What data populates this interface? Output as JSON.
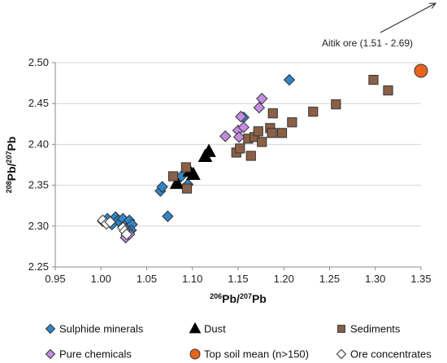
{
  "chart_data": {
    "type": "scatter",
    "xlabel": "206Pb/207Pb",
    "ylabel": "208Pb/207Pb",
    "xlim": [
      0.95,
      1.35
    ],
    "ylim": [
      2.25,
      2.5
    ],
    "xticks": [
      "0.95",
      "1.00",
      "1.05",
      "1.10",
      "1.15",
      "1.20",
      "1.25",
      "1.30",
      "1.35"
    ],
    "yticks": [
      "2.25",
      "2.30",
      "2.35",
      "2.40",
      "2.45",
      "2.50"
    ],
    "grid": "horizontal",
    "legend_position": "bottom",
    "annotation": "Aitik ore (1.51 - 2.69)",
    "series": [
      {
        "name": "Sulphide minerals",
        "marker": "diamond",
        "color": "#2e86c8",
        "x": [
          1.002,
          1.007,
          1.012,
          1.016,
          1.019,
          1.021,
          1.024,
          1.026,
          1.029,
          1.031,
          1.034,
          1.033,
          1.028,
          1.031,
          1.065,
          1.067,
          1.073,
          1.084,
          1.088,
          1.095,
          1.156,
          1.206
        ],
        "y": [
          2.306,
          2.309,
          2.302,
          2.311,
          2.307,
          2.304,
          2.309,
          2.301,
          2.298,
          2.307,
          2.302,
          2.295,
          2.289,
          2.293,
          2.343,
          2.348,
          2.312,
          2.357,
          2.361,
          2.351,
          2.433,
          2.479
        ]
      },
      {
        "name": "Dust",
        "marker": "triangle",
        "color": "#000000",
        "x": [
          1.083,
          1.097,
          1.101,
          1.114,
          1.118
        ],
        "y": [
          2.352,
          2.367,
          2.363,
          2.385,
          2.391
        ]
      },
      {
        "name": "Sediments",
        "marker": "square",
        "color": "#8b6046",
        "x": [
          1.079,
          1.093,
          1.094,
          1.148,
          1.152,
          1.161,
          1.164,
          1.168,
          1.172,
          1.176,
          1.185,
          1.187,
          1.188,
          1.198,
          1.209,
          1.232,
          1.257,
          1.298,
          1.314
        ],
        "y": [
          2.361,
          2.372,
          2.346,
          2.39,
          2.395,
          2.407,
          2.386,
          2.409,
          2.416,
          2.403,
          2.42,
          2.414,
          2.438,
          2.414,
          2.427,
          2.44,
          2.449,
          2.479,
          2.466
        ]
      },
      {
        "name": "Pure chemicals",
        "marker": "diamond",
        "color": "#c48de0",
        "x": [
          1.136,
          1.15,
          1.151,
          1.153,
          1.156,
          1.173,
          1.176,
          1.027,
          1.031
        ],
        "y": [
          2.41,
          2.417,
          2.409,
          2.434,
          2.421,
          2.445,
          2.456,
          2.286,
          2.29
        ]
      },
      {
        "name": "Top soil mean (n>150)",
        "marker": "circle",
        "color": "#e8641e",
        "x": [
          1.35
        ],
        "y": [
          2.49
        ]
      },
      {
        "name": "Ore concentrates",
        "marker": "diamond",
        "color": "#ffffff",
        "x": [
          1.002,
          1.006,
          1.01,
          1.024,
          1.026,
          1.028
        ],
        "y": [
          2.307,
          2.303,
          2.305,
          2.298,
          2.294,
          2.29
        ]
      }
    ]
  }
}
